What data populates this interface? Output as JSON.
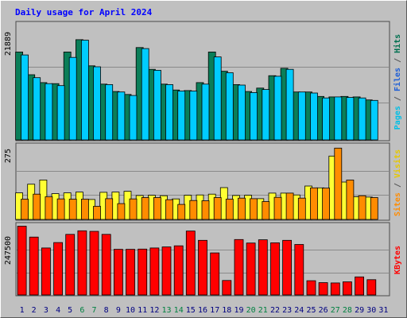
{
  "title": "Daily usage for April 2024",
  "chart_data": [
    {
      "type": "bar",
      "name": "pages-files-hits",
      "ytick_label": "21889",
      "ylim": [
        0,
        21889
      ],
      "right_labels": [
        {
          "text": "Pages",
          "color": "#00bfe6"
        },
        {
          "text": " / ",
          "color": "#555555"
        },
        {
          "text": "Files",
          "color": "#1f5fd6"
        },
        {
          "text": " / ",
          "color": "#555555"
        },
        {
          "text": "Hits",
          "color": "#007050"
        }
      ],
      "series": [
        {
          "key": "hits",
          "color": "#0a7e58",
          "values": [
            17800,
            13200,
            11600,
            11400,
            17800,
            20300,
            15000,
            11300,
            9800,
            9200,
            18700,
            14300,
            11300,
            10100,
            10000,
            11600,
            17800,
            13900,
            11200,
            9800,
            10500,
            13000,
            14500,
            9700,
            9700,
            8800,
            8700,
            8800,
            8700,
            8100
          ]
        },
        {
          "key": "pages",
          "color": "#00ccff",
          "values": [
            17200,
            12600,
            11400,
            11000,
            16700,
            20200,
            14800,
            11200,
            9700,
            9000,
            18500,
            14100,
            11200,
            9900,
            9900,
            11300,
            16800,
            13600,
            11100,
            9600,
            10200,
            12900,
            14300,
            9700,
            9500,
            8500,
            8700,
            8600,
            8500,
            8000
          ]
        }
      ],
      "band_lines": [
        7500,
        14850
      ]
    },
    {
      "type": "bar",
      "name": "visits-sites",
      "ytick_label": "275",
      "ylim": [
        0,
        275
      ],
      "right_labels": [
        {
          "text": "Sites",
          "color": "#ff8c00"
        },
        {
          "text": " / ",
          "color": "#555555"
        },
        {
          "text": "Visits",
          "color": "#e6c800"
        }
      ],
      "series": [
        {
          "key": "visits",
          "color": "#ffff33",
          "values": [
            101,
            134,
            150,
            98,
            101,
            104,
            76,
            103,
            104,
            107,
            91,
            92,
            90,
            78,
            92,
            93,
            96,
            121,
            91,
            92,
            79,
            100,
            100,
            93,
            127,
            120,
            241,
            142,
            86,
            85
          ]
        },
        {
          "key": "sites",
          "color": "#ff8c00",
          "values": [
            77,
            96,
            86,
            78,
            77,
            77,
            50,
            79,
            60,
            78,
            83,
            83,
            75,
            57,
            72,
            71,
            83,
            77,
            81,
            79,
            68,
            84,
            100,
            81,
            120,
            119,
            271,
            150,
            90,
            83
          ]
        }
      ],
      "band_lines": [
        93,
        185
      ]
    },
    {
      "type": "bar",
      "name": "kbytes",
      "ytick_label": "247500",
      "ylim": [
        0,
        247500
      ],
      "right_labels": [
        {
          "text": "KBytes",
          "color": "#ff0000"
        }
      ],
      "series": [
        {
          "key": "kbytes",
          "color": "#ff0000",
          "values": [
            252000,
            212000,
            172000,
            192000,
            222000,
            235000,
            233000,
            222000,
            167000,
            167000,
            168000,
            172000,
            176000,
            180000,
            234000,
            200000,
            154000,
            53000,
            203000,
            190000,
            202000,
            191000,
            200000,
            185000,
            52000,
            45000,
            44000,
            48000,
            66000,
            56000
          ]
        }
      ],
      "band_lines": [
        82500,
        165000
      ]
    }
  ],
  "x_labels": {
    "days": [
      "1",
      "2",
      "3",
      "4",
      "5",
      "6",
      "7",
      "8",
      "9",
      "10",
      "11",
      "12",
      "13",
      "14",
      "15",
      "16",
      "17",
      "18",
      "19",
      "20",
      "21",
      "22",
      "23",
      "24",
      "25",
      "26",
      "27",
      "28",
      "29",
      "30",
      "31"
    ],
    "weekend_days": [
      6,
      7,
      13,
      14,
      20,
      21,
      27,
      28
    ],
    "weekday_color": "#000080",
    "weekend_color": "#008040"
  }
}
